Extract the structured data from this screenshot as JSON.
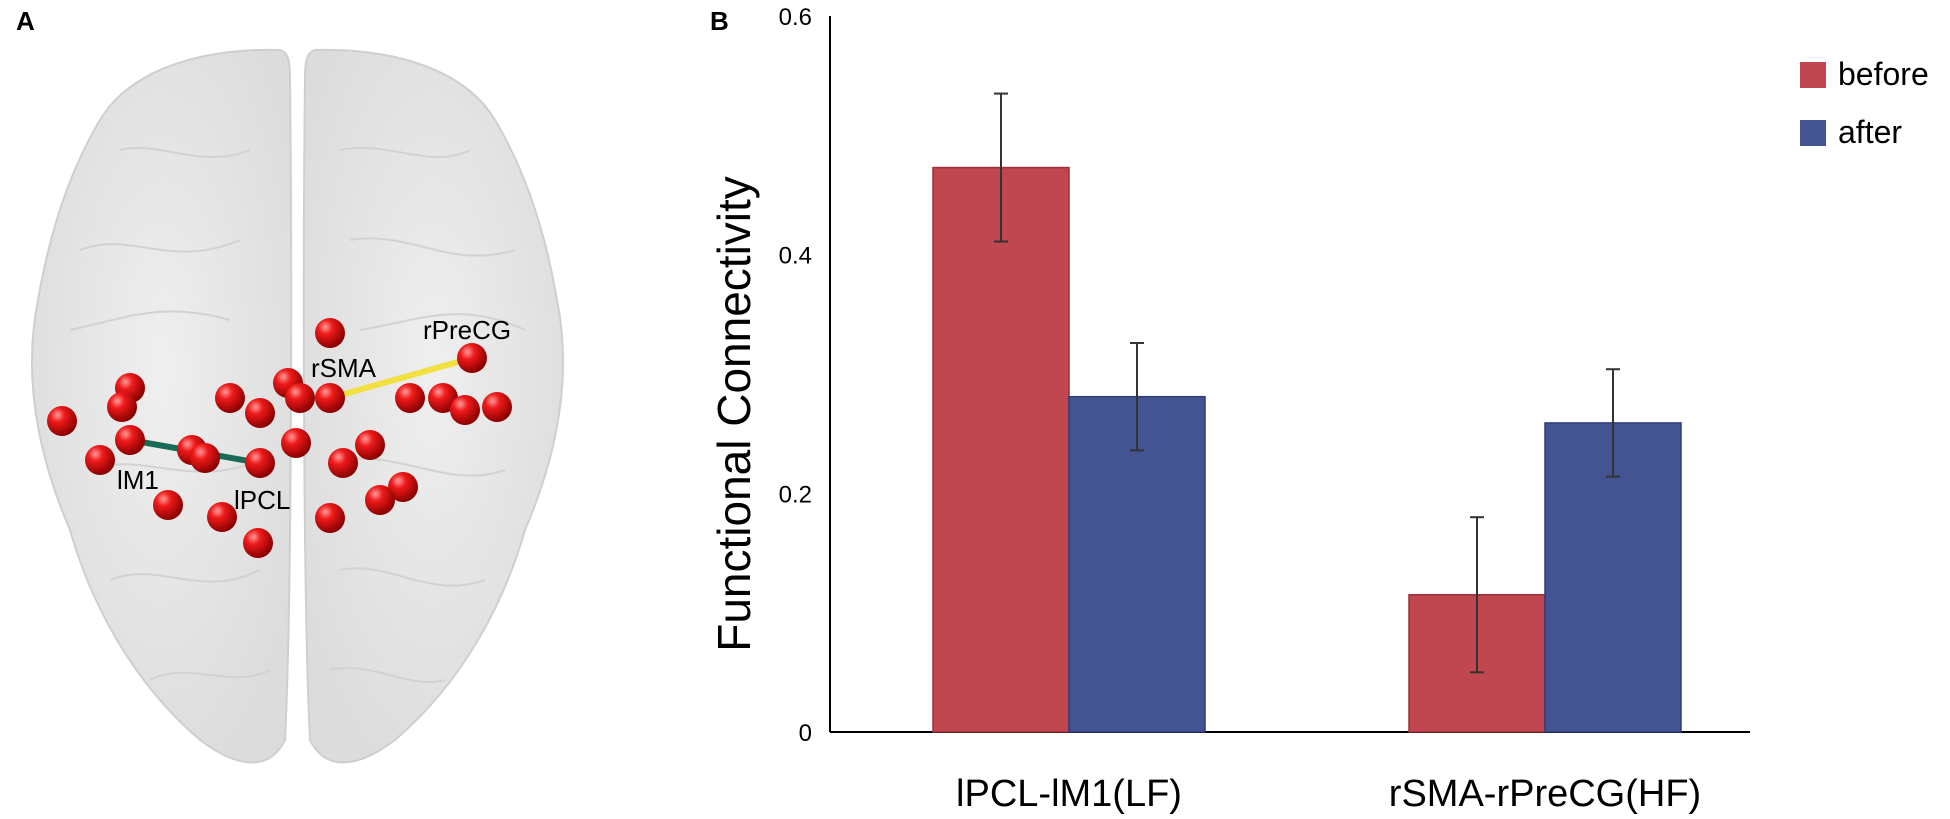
{
  "panels": {
    "a_label": "A",
    "b_label": "B"
  },
  "brain": {
    "labels": {
      "lm1": "lM1",
      "lpcl": "lPCL",
      "rsma": "rSMA",
      "rprecg": "rPreCG"
    },
    "colors": {
      "node": "#e00000",
      "edge_lf": "#1a6b55",
      "edge_hf": "#f0e040",
      "brain": "#e4e4e4"
    }
  },
  "chart_data": {
    "type": "bar",
    "title": "",
    "xlabel": "",
    "ylabel": "Functional Connectivity",
    "categories": [
      "lPCL-lM1(LF)",
      "rSMA-rPreCG(HF)"
    ],
    "series": [
      {
        "name": "before",
        "color": "#c0464f",
        "values": [
          0.473,
          0.115
        ],
        "error": [
          0.062,
          0.065
        ]
      },
      {
        "name": "after",
        "color": "#445493",
        "values": [
          0.281,
          0.259
        ],
        "error": [
          0.045,
          0.045
        ]
      }
    ],
    "ylim": [
      0,
      0.6
    ],
    "yticks": [
      "0",
      "0.2",
      "0.4",
      "0.6"
    ],
    "ytick_values": [
      0,
      0.2,
      0.4,
      0.6
    ],
    "legend_position": "top-right",
    "grid": false
  }
}
